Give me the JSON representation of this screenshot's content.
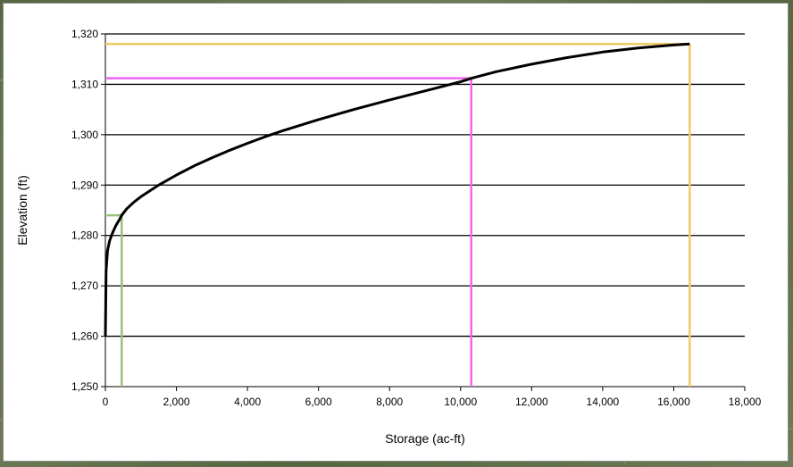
{
  "chart_data": {
    "type": "line",
    "xlabel": "Storage (ac-ft)",
    "ylabel": "Elevation (ft)",
    "xlim": [
      0,
      18000
    ],
    "ylim": [
      1250,
      1320
    ],
    "x_ticks": [
      0,
      2000,
      4000,
      6000,
      8000,
      10000,
      12000,
      14000,
      16000,
      18000
    ],
    "x_tick_labels": [
      "0",
      "2,000",
      "4,000",
      "6,000",
      "8,000",
      "10,000",
      "12,000",
      "14,000",
      "16,000",
      "18,000"
    ],
    "y_ticks": [
      1250,
      1260,
      1270,
      1280,
      1290,
      1300,
      1310,
      1320
    ],
    "y_tick_labels": [
      "1,250",
      "1,260",
      "1,270",
      "1,280",
      "1,290",
      "1,300",
      "1,310",
      "1,320"
    ],
    "grid": "horizontal",
    "series": [
      {
        "color": "#000000",
        "x": [
          0,
          20,
          60,
          120,
          200,
          300,
          400,
          460,
          600,
          800,
          1000,
          1500,
          2000,
          2500,
          3000,
          3500,
          4000,
          4500,
          5000,
          6000,
          7000,
          8000,
          9000,
          10000,
          10300,
          11000,
          12000,
          13000,
          14000,
          15000,
          16000,
          16450
        ],
        "y": [
          1260,
          1273,
          1277,
          1279,
          1280.5,
          1282,
          1283.2,
          1284,
          1285.3,
          1286.6,
          1287.7,
          1290,
          1292,
          1293.8,
          1295.4,
          1296.9,
          1298.3,
          1299.6,
          1300.8,
          1303,
          1305,
          1306.9,
          1308.7,
          1310.5,
          1311.2,
          1312.5,
          1314,
          1315.3,
          1316.4,
          1317.2,
          1317.8,
          1318
        ]
      }
    ],
    "reference_lines": [
      {
        "color": "#99c27a",
        "x": 460,
        "y": 1284
      },
      {
        "color": "#ee66ee",
        "x": 10300,
        "y": 1311.2
      },
      {
        "color": "#f2c861",
        "x": 16450,
        "y": 1318
      }
    ]
  }
}
